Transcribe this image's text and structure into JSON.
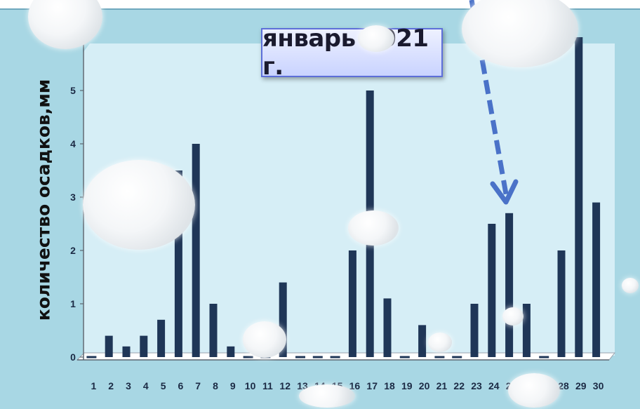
{
  "chart_data": {
    "type": "bar",
    "title": "январь 2021 г.",
    "ylabel": "количество осадков,мм",
    "xlabel": "",
    "ylim": [
      0,
      6
    ],
    "yticks": [
      0,
      1,
      2,
      3,
      4,
      5
    ],
    "categories": [
      "1",
      "2",
      "3",
      "4",
      "5",
      "6",
      "7",
      "8",
      "9",
      "10",
      "11",
      "12",
      "13",
      "14",
      "15",
      "16",
      "17",
      "18",
      "19",
      "20",
      "21",
      "22",
      "23",
      "24",
      "25",
      "26",
      "27",
      "28",
      "29",
      "30"
    ],
    "values": [
      0,
      0.4,
      0.2,
      0.4,
      0.7,
      3.5,
      4.0,
      1.0,
      0.2,
      0,
      0,
      1.4,
      0,
      0,
      0,
      2.0,
      5.0,
      1.1,
      0,
      0.6,
      0,
      0,
      1.0,
      2.5,
      2.7,
      1.0,
      0,
      2.0,
      6.0,
      2.9
    ],
    "bar_color": "#1f3657",
    "grid": false,
    "legend": "none"
  }
}
